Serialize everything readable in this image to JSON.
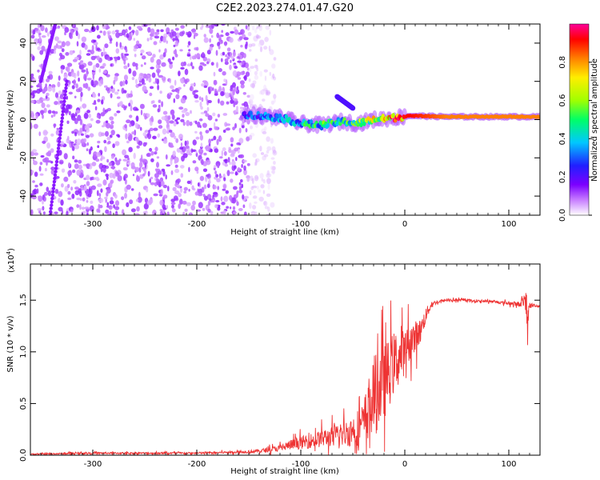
{
  "figure": {
    "title": "C2E2.2023.274.01.47.G20"
  },
  "colorbar": {
    "label": "Normalized spectral amplitude",
    "ticks": [
      "0.0",
      "0.2",
      "0.4",
      "0.6",
      "0.8"
    ],
    "range": [
      0,
      1
    ],
    "colormap": [
      "#ffffff",
      "#c77dff",
      "#7b00ff",
      "#2020ff",
      "#00c8ff",
      "#00ff66",
      "#a0ff00",
      "#ffee00",
      "#ff8000",
      "#ff0000",
      "#ff0099"
    ]
  },
  "chart_data": [
    {
      "type": "heatmap",
      "xlabel": "Height of straight line (km)",
      "ylabel": "Frequency (Hz)",
      "xlim": [
        -360,
        130
      ],
      "ylim": [
        -50,
        50
      ],
      "x_ticks": [
        -300,
        -200,
        -100,
        0,
        100
      ],
      "y_ticks": [
        -40,
        -20,
        0,
        20,
        40
      ],
      "x_tick_labels": [
        "-300",
        "-200",
        "-100",
        "0",
        "100"
      ],
      "y_tick_labels": [
        "-40",
        "-20",
        "0",
        "20",
        "40"
      ],
      "grid": false,
      "features": [
        {
          "kind": "scattered-noise",
          "x_range": [
            -360,
            -150
          ],
          "frequency_range": [
            -50,
            50
          ],
          "amplitude": 0.12
        },
        {
          "kind": "faint-noise",
          "x_range": [
            -150,
            -125
          ],
          "frequency_range": [
            -50,
            50
          ],
          "amplitude": 0.05
        },
        {
          "kind": "diagonal-line",
          "from": [
            -341,
            -50
          ],
          "to": [
            -325,
            20
          ],
          "amplitude": 0.18
        },
        {
          "kind": "diagonal-line",
          "from": [
            -350,
            20
          ],
          "to": [
            -336,
            50
          ],
          "amplitude": 0.18
        },
        {
          "kind": "ridge",
          "x": [
            -155,
            -140,
            -120,
            -100,
            -80,
            -60,
            -45,
            -30,
            -10,
            5,
            40,
            80,
            120,
            130
          ],
          "frequency": [
            3,
            2,
            1,
            -2,
            -3,
            -1,
            -2,
            0,
            1,
            2,
            1.5,
            1.5,
            1.5,
            1.5
          ],
          "amplitude": [
            0.3,
            0.35,
            0.4,
            0.45,
            0.5,
            0.5,
            0.55,
            0.7,
            0.85,
            0.9,
            0.8,
            0.8,
            0.8,
            0.8
          ]
        },
        {
          "kind": "branch",
          "from": [
            -65,
            12
          ],
          "to": [
            -50,
            6
          ],
          "amplitude": 0.25
        }
      ]
    },
    {
      "type": "line",
      "xlabel": "Height of straight line (km)",
      "ylabel": "SNR (10 * v/v)",
      "ylabel_multiplier": "(x10^4)",
      "multiplier_text": "(x10",
      "multiplier_exp": "4",
      "multiplier_close": ")",
      "xlim": [
        -360,
        130
      ],
      "ylim": [
        0,
        1.85
      ],
      "x_ticks": [
        -300,
        -200,
        -100,
        0,
        100
      ],
      "y_ticks": [
        0,
        0.5,
        1,
        1.5
      ],
      "x_tick_labels": [
        "-300",
        "-200",
        "-100",
        "0",
        "100"
      ],
      "y_tick_labels": [
        "0.0",
        "0.5",
        "1.0",
        "1.5"
      ],
      "grid": false,
      "series": [
        {
          "color": "#ee3333",
          "x": [
            -360,
            -300,
            -250,
            -200,
            -160,
            -140,
            -120,
            -110,
            -100,
            -90,
            -80,
            -70,
            -60,
            -50,
            -40,
            -35,
            -30,
            -25,
            -20,
            -15,
            -10,
            -5,
            0,
            5,
            10,
            15,
            20,
            25,
            30,
            40,
            50,
            60,
            70,
            80,
            90,
            100,
            110,
            115,
            118,
            120,
            125,
            130
          ],
          "y": [
            0.01,
            0.02,
            0.02,
            0.02,
            0.03,
            0.04,
            0.07,
            0.1,
            0.12,
            0.14,
            0.16,
            0.18,
            0.2,
            0.24,
            0.3,
            0.45,
            0.55,
            0.65,
            0.7,
            0.8,
            0.9,
            0.95,
            1.0,
            1.1,
            1.15,
            1.2,
            1.35,
            1.45,
            1.48,
            1.5,
            1.5,
            1.5,
            1.49,
            1.49,
            1.48,
            1.47,
            1.46,
            1.5,
            1.3,
            1.45,
            1.45,
            1.44
          ],
          "noise_amplitude": [
            0.01,
            0.015,
            0.015,
            0.015,
            0.02,
            0.03,
            0.05,
            0.08,
            0.1,
            0.12,
            0.14,
            0.16,
            0.2,
            0.25,
            0.35,
            0.5,
            0.6,
            0.7,
            0.6,
            0.55,
            0.5,
            0.45,
            0.35,
            0.3,
            0.25,
            0.2,
            0.12,
            0.06,
            0.03,
            0.02,
            0.02,
            0.02,
            0.02,
            0.02,
            0.02,
            0.03,
            0.04,
            0.1,
            0.2,
            0.05,
            0.02,
            0.02
          ]
        }
      ]
    }
  ]
}
